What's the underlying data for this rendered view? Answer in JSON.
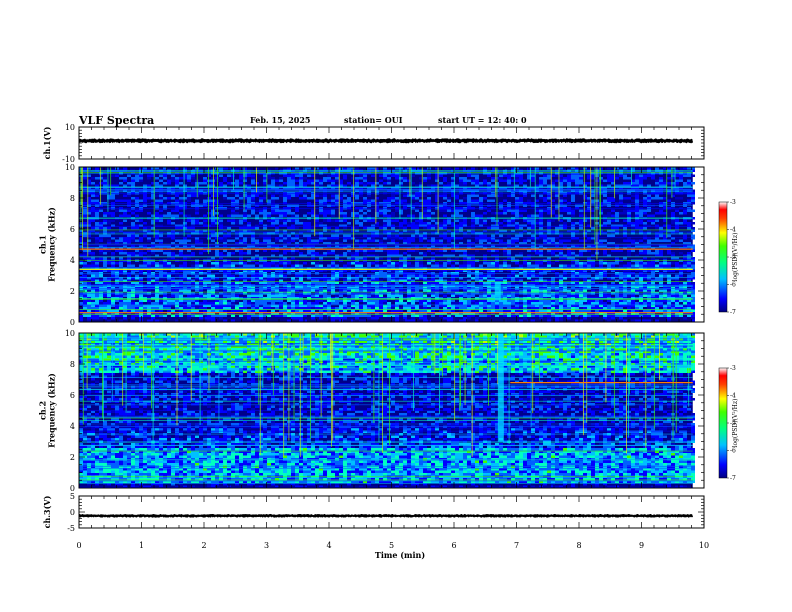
{
  "header": {
    "title": "VLF Spectra",
    "date": "Feb. 15, 2025",
    "station": "station= OUI",
    "start_ut": "start  UT =   12: 40: 0"
  },
  "chart_data": [
    {
      "type": "line",
      "id": "ch1-waveform",
      "ylabel": "ch.1(V)",
      "ylim": [
        -10,
        10
      ],
      "yticks": [
        10,
        -10
      ],
      "ytick_labels": [
        "10",
        "-10"
      ],
      "x": [
        0,
        9.82
      ],
      "values": [
        1.4,
        1.4
      ],
      "band_half_width": 1.0,
      "series_color": "#000000"
    },
    {
      "type": "heatmap",
      "id": "ch1-spectrogram",
      "ylabel": "ch.1\nFrequency (kHz)",
      "ylim": [
        0,
        10
      ],
      "yticks": [
        0,
        2,
        4,
        6,
        8,
        10
      ],
      "ytick_labels": [
        "0",
        "2",
        "4",
        "6",
        "8",
        "10"
      ],
      "xlim": [
        0,
        9.82
      ],
      "colorbar": {
        "title": "log(PSD)(V²/Hz)",
        "range": [
          -7,
          -3
        ],
        "ticks": [
          "-3",
          "-4",
          "-5",
          "-6",
          "-7"
        ]
      },
      "notable_features": [
        {
          "label": "interference line",
          "freq_khz": 4.7,
          "level": -3.5
        },
        {
          "label": "interference line",
          "freq_khz": 3.4,
          "level": -3.8
        },
        {
          "label": "interference line",
          "freq_khz": 0.6,
          "level": -3.4
        },
        {
          "label": "band enhancement",
          "freq_khz": [
            1.0,
            2.6
          ],
          "level": -5.2
        },
        {
          "label": "broadband burst",
          "time_min": 6.7,
          "freq_khz": [
            1.4,
            2.6
          ]
        }
      ]
    },
    {
      "type": "heatmap",
      "id": "ch2-spectrogram",
      "ylabel": "ch.2\nFrequency (kHz)",
      "ylim": [
        0,
        10
      ],
      "yticks": [
        0,
        2,
        4,
        6,
        8,
        10
      ],
      "ytick_labels": [
        "0",
        "2",
        "4",
        "6",
        "8",
        "10"
      ],
      "xlim": [
        0,
        9.82
      ],
      "colorbar": {
        "title": "log(PSD)(V²/Hz)",
        "range": [
          -7,
          -3
        ],
        "ticks": [
          "-3",
          "-4",
          "-5",
          "-6",
          "-7"
        ]
      },
      "notable_features": [
        {
          "label": "high-frequency sferics",
          "freq_khz": [
            7.5,
            10
          ],
          "level": -5.0
        },
        {
          "label": "interference line",
          "freq_khz": 6.8,
          "time_min": [
            6.9,
            9.82
          ],
          "level": -3.6
        },
        {
          "label": "band enhancement",
          "freq_khz": [
            1.0,
            2.2
          ],
          "level": -5.0
        },
        {
          "label": "broadband burst",
          "time_min": 6.75,
          "freq_khz": [
            3.0,
            10
          ]
        }
      ]
    },
    {
      "type": "line",
      "id": "ch3-waveform",
      "ylabel": "ch.3(V)",
      "ylim": [
        -5,
        5
      ],
      "yticks": [
        5,
        0,
        -5
      ],
      "ytick_labels": [
        "5",
        "0",
        "-5"
      ],
      "x": [
        0,
        9.82
      ],
      "values": [
        -1.2,
        -1.2
      ],
      "band_half_width": 0.35,
      "series_color": "#000000"
    }
  ],
  "x_axis": {
    "label": "Time (min)",
    "xlim": [
      0,
      10
    ],
    "ticks": [
      "0",
      "1",
      "2",
      "3",
      "4",
      "5",
      "6",
      "7",
      "8",
      "9",
      "10"
    ]
  },
  "colormap": [
    "#000080",
    "#0000ff",
    "#0080ff",
    "#00ffff",
    "#00ff00",
    "#ffff00",
    "#ff8000",
    "#ff0000",
    "#ffffff"
  ]
}
